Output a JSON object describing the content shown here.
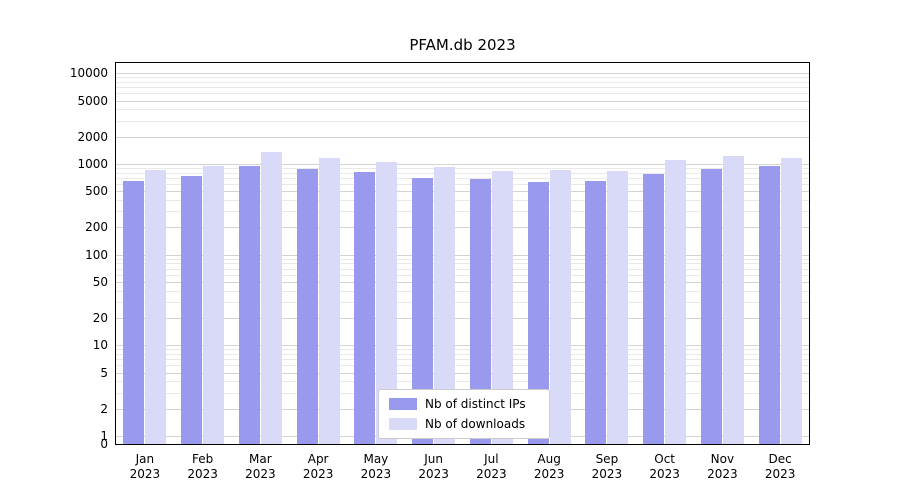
{
  "chart_data": {
    "type": "bar",
    "title": "PFAM.db 2023",
    "categories": [
      "Jan 2023",
      "Feb 2023",
      "Mar 2023",
      "Apr 2023",
      "May 2023",
      "Jun 2023",
      "Jul 2023",
      "Aug 2023",
      "Sep 2023",
      "Oct 2023",
      "Nov 2023",
      "Dec 2023"
    ],
    "series": [
      {
        "name": "Nb of distinct IPs",
        "color": "#9999ed",
        "values": [
          650,
          740,
          950,
          880,
          820,
          700,
          690,
          630,
          650,
          780,
          880,
          940
        ]
      },
      {
        "name": "Nb of downloads",
        "color": "#d9d9f8",
        "values": [
          850,
          960,
          1350,
          1180,
          1060,
          930,
          840,
          850,
          840,
          1100,
          1230,
          1160
        ]
      }
    ],
    "yscale": "symlog",
    "yticks": [
      0,
      1,
      2,
      5,
      10,
      20,
      50,
      100,
      200,
      500,
      1000,
      2000,
      5000,
      10000
    ],
    "ylim": [
      0,
      13000
    ],
    "grid": true,
    "legend_position": "lower center",
    "colors": {
      "grid_major": "#d3d3d3",
      "grid_minor": "#e9e9e9",
      "axis": "#000000",
      "background": "#ffffff"
    }
  }
}
